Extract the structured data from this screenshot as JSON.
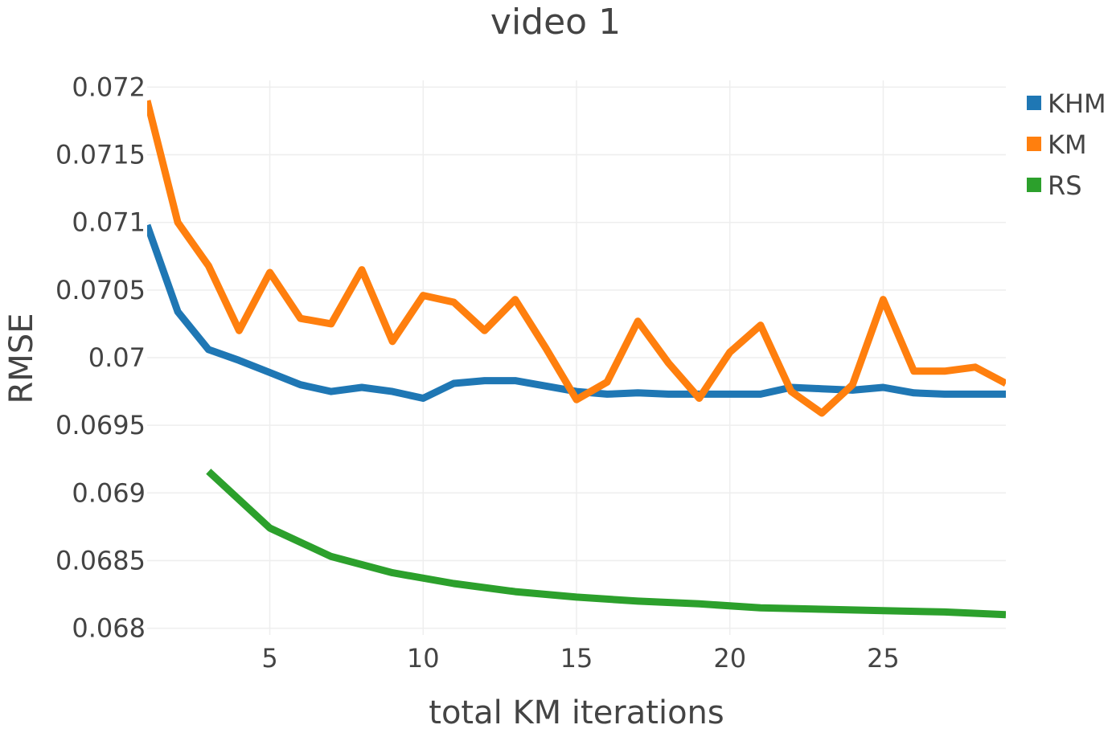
{
  "chart_data": {
    "type": "line",
    "title": "video 1",
    "xlabel": "total KM iterations",
    "ylabel": "RMSE",
    "xlim": [
      1,
      29
    ],
    "ylim": [
      0.06795,
      0.07205
    ],
    "x_ticks": [
      5,
      10,
      15,
      20,
      25
    ],
    "y_ticks": [
      0.068,
      0.0685,
      0.069,
      0.0695,
      0.07,
      0.0705,
      0.071,
      0.0715,
      0.072
    ],
    "grid": true,
    "legend_position": "top-right",
    "series": [
      {
        "name": "KHM",
        "color": "#1f77b4",
        "x": [
          1,
          2,
          3,
          4,
          5,
          6,
          7,
          8,
          9,
          10,
          11,
          12,
          13,
          14,
          15,
          16,
          17,
          18,
          19,
          20,
          21,
          22,
          23,
          24,
          25,
          26,
          27,
          28,
          29
        ],
        "values": [
          0.07098,
          0.07034,
          0.07006,
          0.06998,
          0.06989,
          0.0698,
          0.06975,
          0.06978,
          0.06975,
          0.0697,
          0.06981,
          0.06983,
          0.06983,
          0.06979,
          0.06975,
          0.06973,
          0.06974,
          0.06973,
          0.06973,
          0.06973,
          0.06973,
          0.06978,
          0.06977,
          0.06976,
          0.06978,
          0.06974,
          0.06973,
          0.06973,
          0.06973
        ]
      },
      {
        "name": "KM",
        "color": "#ff7f0e",
        "x": [
          1,
          2,
          3,
          4,
          5,
          6,
          7,
          8,
          9,
          10,
          11,
          12,
          13,
          14,
          15,
          16,
          17,
          18,
          19,
          20,
          21,
          22,
          23,
          24,
          25,
          26,
          27,
          28,
          29
        ],
        "values": [
          0.0719,
          0.071,
          0.07068,
          0.0702,
          0.07063,
          0.07029,
          0.07025,
          0.07065,
          0.07012,
          0.07046,
          0.07041,
          0.0702,
          0.07043,
          0.07007,
          0.06969,
          0.06982,
          0.07027,
          0.06996,
          0.0697,
          0.07004,
          0.07024,
          0.06975,
          0.06959,
          0.0698,
          0.07043,
          0.0699,
          0.0699,
          0.06993,
          0.06981
        ]
      },
      {
        "name": "RS",
        "color": "#2ca02c",
        "x": [
          3,
          5,
          7,
          9,
          11,
          13,
          15,
          17,
          19,
          21,
          23,
          25,
          27,
          29
        ],
        "values": [
          0.06916,
          0.06874,
          0.06853,
          0.06841,
          0.06833,
          0.06827,
          0.06823,
          0.0682,
          0.06818,
          0.06815,
          0.06814,
          0.06813,
          0.06812,
          0.0681
        ]
      }
    ]
  }
}
